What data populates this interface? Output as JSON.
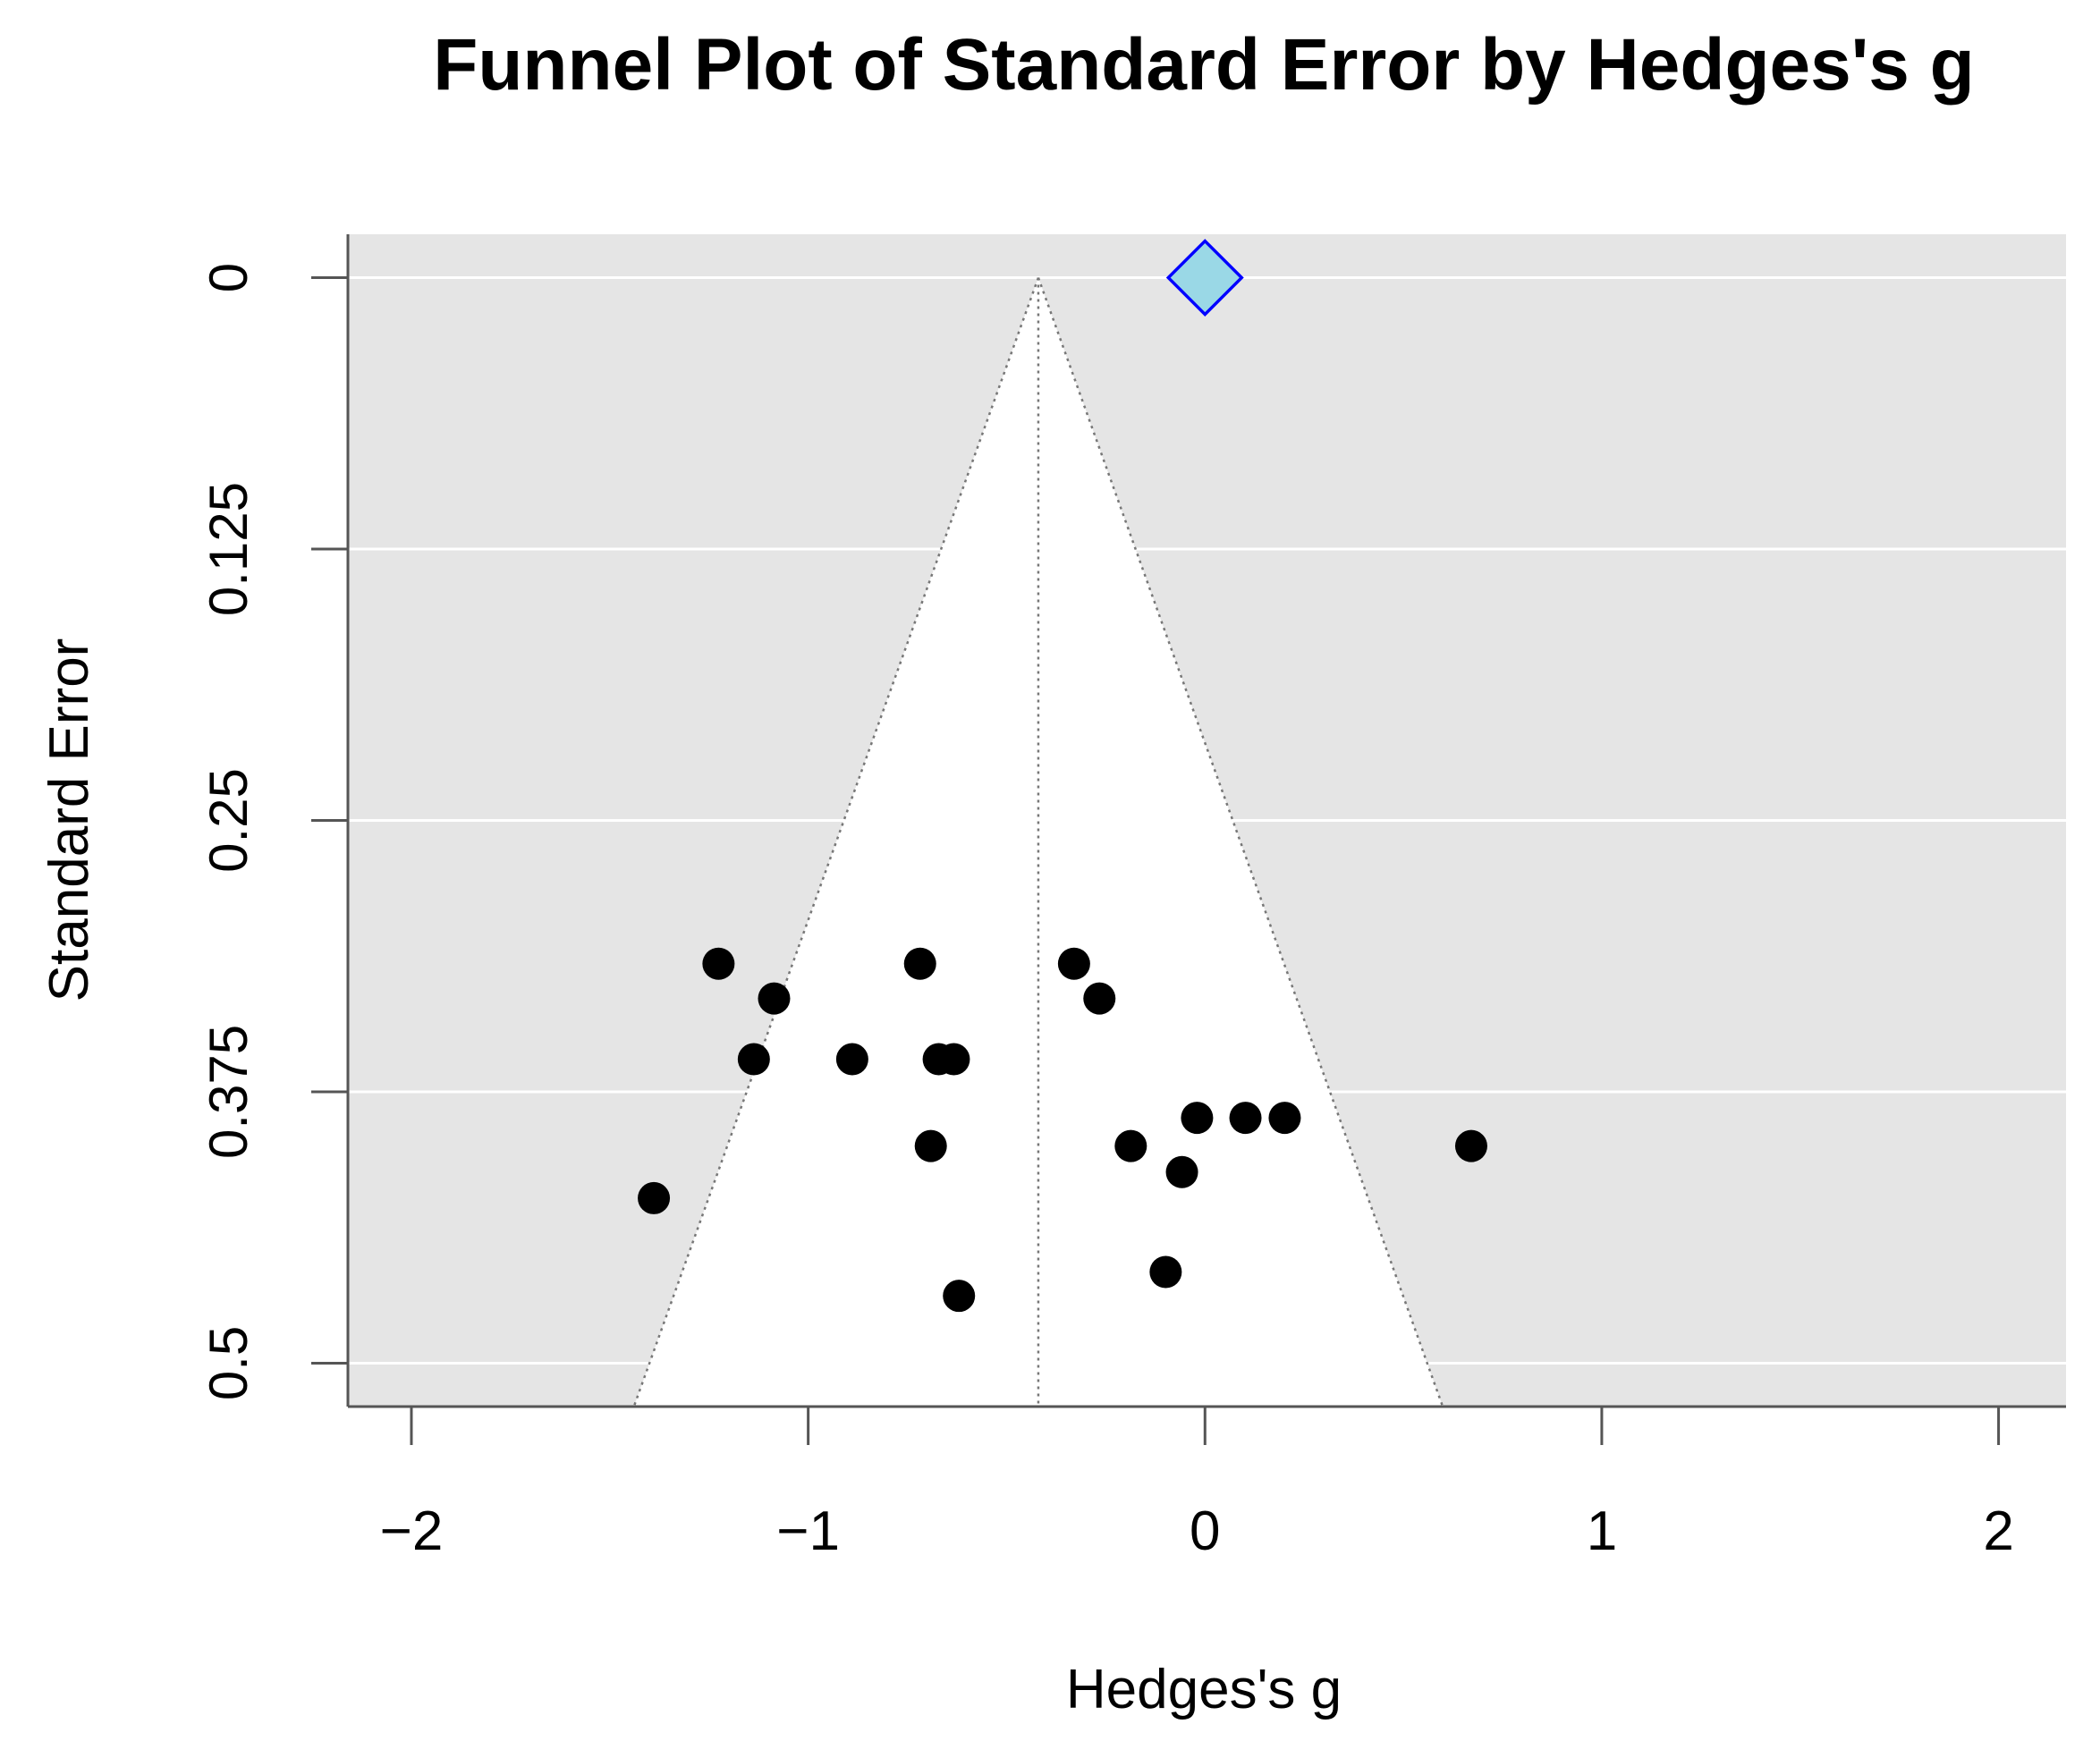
{
  "chart_data": {
    "type": "scatter",
    "title": "Funnel Plot of Standard Error by Hedges's g",
    "x_label": "Hedges's g",
    "y_label": "Standard Error",
    "x": [
      -1.226,
      -1.086,
      -1.137,
      -1.389,
      -0.889,
      -0.718,
      -0.671,
      -0.633,
      -0.691,
      -0.62,
      -0.33,
      -0.266,
      -0.187,
      -0.058,
      -0.02,
      0.102,
      0.201,
      -0.099,
      0.671
    ],
    "values": [
      0.316,
      0.332,
      0.36,
      0.424,
      0.36,
      0.316,
      0.36,
      0.36,
      0.4,
      0.469,
      0.316,
      0.332,
      0.4,
      0.412,
      0.387,
      0.387,
      0.387,
      0.458,
      0.4
    ],
    "color": "#000000",
    "summary": {
      "x": 0,
      "y": 0,
      "color": "#9ad8e6",
      "edge_color": "#0000ff"
    },
    "funnel_center": -0.42,
    "funnel_z": 1.96,
    "xlim": [
      -2.16,
      2.17
    ],
    "ylim": [
      -0.02,
      0.52
    ],
    "y_inverted": true,
    "xticks": [
      {
        "value": -2,
        "label": "−2"
      },
      {
        "value": -1,
        "label": "−1"
      },
      0,
      1,
      2
    ],
    "yticks": [
      0,
      0.125,
      0.25,
      0.375,
      0.5
    ],
    "grid": true
  }
}
